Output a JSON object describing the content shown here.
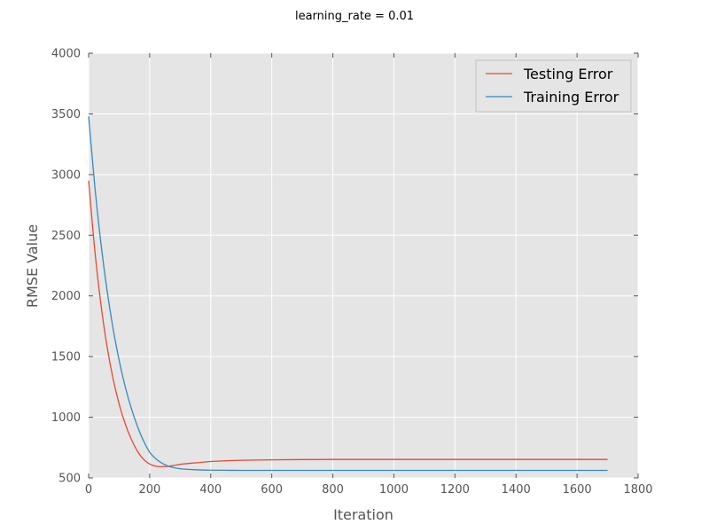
{
  "chart_data": {
    "type": "line",
    "title": "learning_rate = 0.01",
    "xlabel": "Iteration",
    "ylabel": "RMSE Value",
    "xlim": [
      0,
      1800
    ],
    "ylim": [
      500,
      4000
    ],
    "x_ticks": [
      0,
      200,
      400,
      600,
      800,
      1000,
      1200,
      1400,
      1600,
      1800
    ],
    "y_ticks": [
      500,
      1000,
      1500,
      2000,
      2500,
      3000,
      3500,
      4000
    ],
    "x_tick_labels": [
      "0",
      "200",
      "400",
      "600",
      "800",
      "1000",
      "1200",
      "1400",
      "1600",
      "1800"
    ],
    "y_tick_labels": [
      "500",
      "1000",
      "1500",
      "2000",
      "2500",
      "3000",
      "3500",
      "4000"
    ],
    "grid": true,
    "legend_position": "top-right",
    "series": [
      {
        "name": "Testing Error",
        "color": "#E24A33",
        "x": [
          0,
          20,
          40,
          60,
          80,
          100,
          120,
          140,
          160,
          180,
          200,
          220,
          240,
          260,
          280,
          300,
          350,
          400,
          450,
          500,
          600,
          700,
          800,
          1000,
          1200,
          1400,
          1600,
          1700
        ],
        "y": [
          2950,
          2380,
          1935,
          1588,
          1318,
          1108,
          945,
          818,
          720,
          653,
          615,
          597,
          592,
          595,
          603,
          612,
          624,
          635,
          641,
          645,
          649,
          651,
          652,
          652,
          652,
          652,
          652,
          652
        ]
      },
      {
        "name": "Training Error",
        "color": "#348ABD",
        "x": [
          0,
          20,
          40,
          60,
          80,
          100,
          120,
          140,
          160,
          180,
          200,
          220,
          240,
          260,
          280,
          300,
          320,
          350,
          400,
          450,
          500,
          600,
          800,
          1000,
          1200,
          1400,
          1600,
          1700
        ],
        "y": [
          3480,
          2910,
          2440,
          2052,
          1732,
          1468,
          1250,
          1072,
          925,
          805,
          712,
          658,
          622,
          598,
          584,
          576,
          571,
          567,
          564,
          563,
          562,
          562,
          562,
          562,
          562,
          562,
          562,
          562
        ]
      }
    ]
  }
}
